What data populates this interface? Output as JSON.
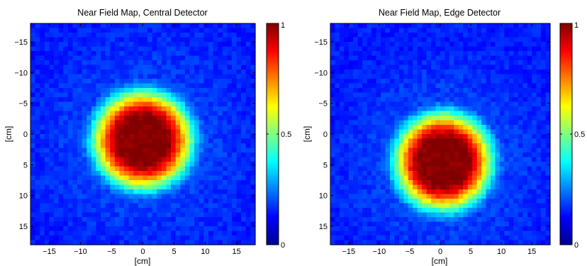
{
  "chart_data": [
    {
      "type": "heatmap",
      "title": "Near Field Map, Central Detector",
      "xlabel": "[cm]",
      "ylabel": "[cm]",
      "xlim": [
        -18,
        18
      ],
      "ylim": [
        -18,
        18
      ],
      "y_axis_direction": "reversed (negative at top)",
      "xticks": [
        "−15",
        "−10",
        "−5",
        "0",
        "5",
        "10",
        "15"
      ],
      "yticks": [
        "−15",
        "−10",
        "−5",
        "0",
        "5",
        "10",
        "15"
      ],
      "peak_center": [
        0,
        1
      ],
      "core_radius": 3.5,
      "outer_radius": 10.5,
      "peak_value": 1,
      "colorbar": {
        "colormap": "jet",
        "range": [
          0,
          1
        ],
        "ticks": [
          "0",
          "0.5",
          "1"
        ]
      }
    },
    {
      "type": "heatmap",
      "title": "Near Field Map, Edge Detector",
      "xlabel": "[cm]",
      "ylabel": "[cm]",
      "xlim": [
        -18,
        18
      ],
      "ylim": [
        -18,
        18
      ],
      "y_axis_direction": "reversed (negative at top)",
      "xticks": [
        "−15",
        "−10",
        "−5",
        "0",
        "5",
        "10",
        "15"
      ],
      "yticks": [
        "−15",
        "−10",
        "−5",
        "0",
        "5",
        "10",
        "15"
      ],
      "peak_center": [
        0.5,
        4.5
      ],
      "core_radius": 3.5,
      "outer_radius": 10.5,
      "peak_value": 1,
      "colorbar": {
        "colormap": "jet",
        "range": [
          0,
          1
        ],
        "ticks": [
          "0",
          "0.5",
          "1"
        ]
      }
    }
  ]
}
